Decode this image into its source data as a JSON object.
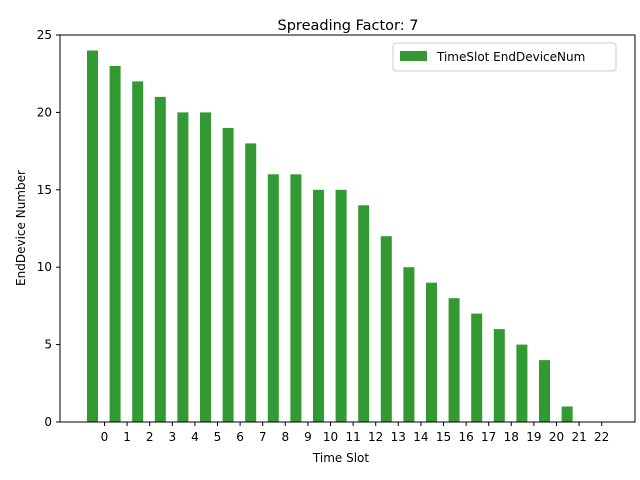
{
  "chart_data": {
    "type": "bar",
    "title": "Spreading Factor: 7",
    "xlabel": "Time Slot",
    "ylabel": "EndDevice Number",
    "categories": [
      "0",
      "1",
      "2",
      "3",
      "4",
      "5",
      "6",
      "7",
      "8",
      "9",
      "10",
      "11",
      "12",
      "13",
      "14",
      "15",
      "16",
      "17",
      "18",
      "19",
      "20",
      "21",
      "22"
    ],
    "values": [
      24,
      23,
      22,
      21,
      20,
      20,
      19,
      18,
      16,
      16,
      15,
      15,
      14,
      12,
      10,
      9,
      8,
      7,
      6,
      5,
      4,
      1,
      0
    ],
    "ylim": [
      0,
      25
    ],
    "yticks": [
      0,
      5,
      10,
      15,
      20,
      25
    ],
    "grid": false,
    "legend": {
      "label": "TimeSlot EndDeviceNum",
      "placement": "top-right"
    },
    "bar_color": "#339933"
  }
}
